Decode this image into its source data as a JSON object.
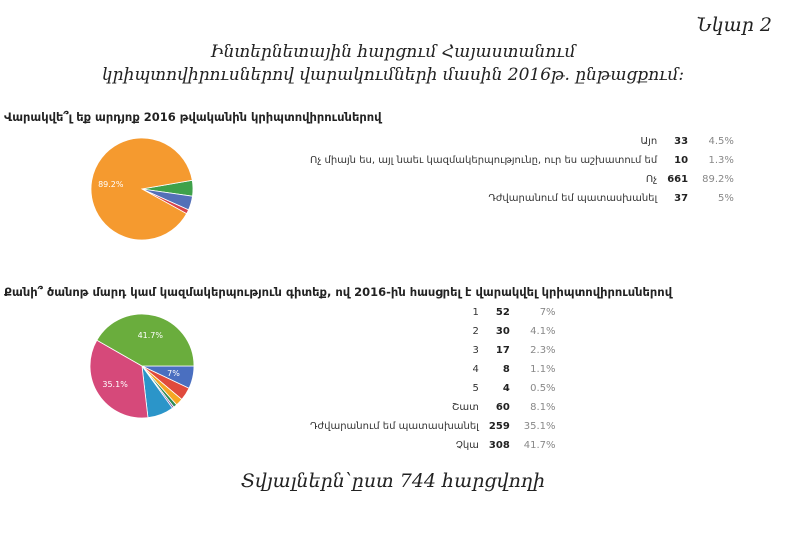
{
  "figure_label": "Նկար 2",
  "title_line1": "Ինտերնետային հարցում Հայաստանում",
  "title_line2": "կրիպտովիրուսներով վարակումների մասին 2016թ. ընթացքում:",
  "footer": "Տվյալներն՝ըստ 744 հարցվողի",
  "chart_data": [
    {
      "type": "pie",
      "title": "Վարակվե՞լ եք արդյոք 2016 թվականին կրիպտովիրուսներով",
      "categories": [
        "Այո",
        "Ոչ միայն ես, այլ նաեւ կազմակերպությունը, ուր ես աշխատում եմ",
        "Ոչ",
        "Դժվարանում եմ պատասխանել"
      ],
      "values": [
        33,
        10,
        661,
        37
      ],
      "percent_labels": [
        "4.5%",
        "1.3%",
        "89.2%",
        "5%"
      ],
      "colors": [
        "#5470b8",
        "#d9434a",
        "#f59a2f",
        "#3fa14a"
      ],
      "slice_labels": [
        "",
        "",
        "89.2%",
        ""
      ]
    },
    {
      "type": "pie",
      "title": "Քանի՞ ծանոթ մարդ կամ կազմակերպություն գիտեք, ով 2016-ին հասցրել է վարակվել կրիպտովիրուսներով",
      "categories": [
        "1",
        "2",
        "3",
        "4",
        "5",
        "Շատ",
        "Դժվարանում եմ պատասխանել",
        "Չկա"
      ],
      "values": [
        52,
        30,
        17,
        8,
        4,
        60,
        259,
        308
      ],
      "percent_labels": [
        "7%",
        "4.1%",
        "2.3%",
        "1.1%",
        "0.5%",
        "8.1%",
        "35.1%",
        "41.7%"
      ],
      "colors": [
        "#4a6fc0",
        "#e04a3c",
        "#f5a623",
        "#2e8b57",
        "#6a3d9a",
        "#2b95c9",
        "#d6497a",
        "#6aad3d"
      ],
      "slice_labels": [
        "7%",
        "",
        "",
        "",
        "",
        "",
        "35.1%",
        "41.7%"
      ]
    }
  ]
}
